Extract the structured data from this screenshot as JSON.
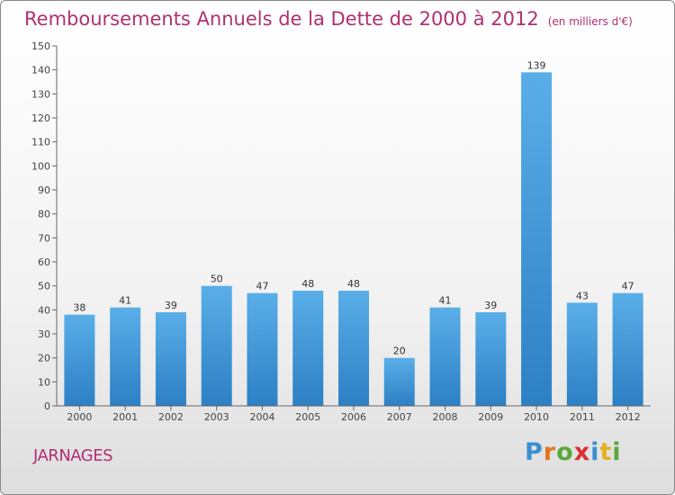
{
  "title": "Remboursements Annuels de la Dette de 2000 à 2012",
  "unit": "(en milliers d'€)",
  "place": "JARNAGES",
  "logo_text": "Proxiti",
  "colors": {
    "bar_top": "#5aaee8",
    "bar_bottom": "#2c80c4",
    "title": "#b03070",
    "axis": "#555555"
  },
  "chart_data": {
    "type": "bar",
    "title": "Remboursements Annuels de la Dette de 2000 à 2012",
    "categories": [
      "2000",
      "2001",
      "2002",
      "2003",
      "2004",
      "2005",
      "2006",
      "2007",
      "2008",
      "2009",
      "2010",
      "2011",
      "2012"
    ],
    "values": [
      38,
      41,
      39,
      50,
      47,
      48,
      48,
      20,
      41,
      39,
      139,
      43,
      47
    ],
    "ylim": [
      0,
      150
    ],
    "yticks": [
      0,
      10,
      20,
      30,
      40,
      50,
      60,
      70,
      80,
      90,
      100,
      110,
      120,
      130,
      140,
      150
    ],
    "xlabel": "",
    "ylabel": "",
    "grid": false,
    "legend": "none"
  }
}
